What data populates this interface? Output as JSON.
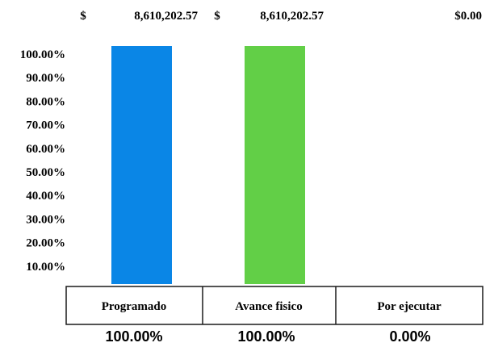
{
  "top_values": [
    {
      "currency": "$",
      "amount": "8,610,202.57"
    },
    {
      "currency": "$",
      "amount": "8,610,202.57"
    },
    {
      "currency": "",
      "amount": "$0.00"
    }
  ],
  "chart_data": {
    "type": "bar",
    "categories": [
      "Programado",
      "Avance fisico",
      "Por ejecutar"
    ],
    "values": [
      100,
      100,
      0
    ],
    "value_labels": [
      "100.00%",
      "100.00%",
      "0.00%"
    ],
    "y_tick_labels": [
      "100.00%",
      "90.00%",
      "80.00%",
      "70.00%",
      "60.00%",
      "50.00%",
      "40.00%",
      "30.00%",
      "20.00%",
      "10.00%"
    ],
    "ylim": [
      0,
      100
    ],
    "colors": [
      "#0a86e6",
      "#62cf47",
      "#ffffff"
    ]
  }
}
